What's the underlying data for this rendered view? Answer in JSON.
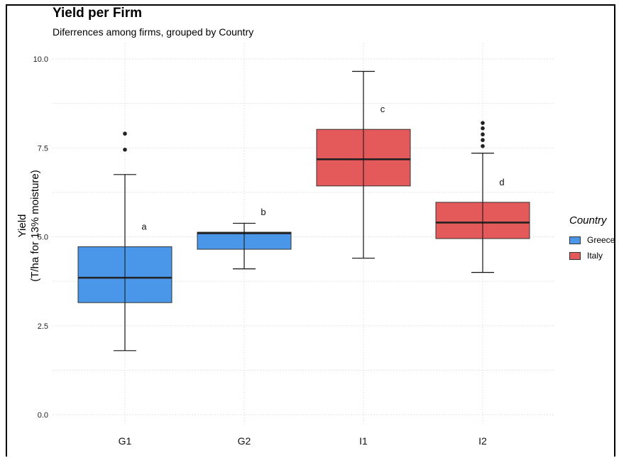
{
  "chart_data": {
    "type": "box",
    "title": "Yield per Firm",
    "subtitle": "Diferrences among firms, grouped by Country",
    "ylabel_line1": "Yield",
    "ylabel_line2": "(T/ha for 13% moisture)",
    "xlabel": "",
    "ylim": [
      0,
      10
    ],
    "y_ticks": [
      "0.0",
      "2.5",
      "5.0",
      "7.5",
      "10.0"
    ],
    "grid": true,
    "legend_title": "Country",
    "legend_position": "right",
    "legend": [
      {
        "name": "Greece",
        "color": "#4a96e8"
      },
      {
        "name": "Italy",
        "color": "#e45a5a"
      }
    ],
    "boxes": [
      {
        "category": "G1",
        "country": "Greece",
        "min": 1.8,
        "q1": 3.15,
        "median": 3.85,
        "q3": 4.72,
        "max": 6.75,
        "outliers": [
          7.45,
          7.9
        ],
        "letter": "a"
      },
      {
        "category": "G2",
        "country": "Greece",
        "min": 4.1,
        "q1": 4.65,
        "median": 5.1,
        "q3": 5.13,
        "max": 5.38,
        "outliers": [],
        "letter": "b"
      },
      {
        "category": "I1",
        "country": "Italy",
        "min": 4.4,
        "q1": 6.43,
        "median": 7.18,
        "q3": 8.02,
        "max": 9.65,
        "outliers": [],
        "letter": "c"
      },
      {
        "category": "I2",
        "country": "Italy",
        "min": 4.0,
        "q1": 4.95,
        "median": 5.4,
        "q3": 5.97,
        "max": 7.35,
        "outliers": [
          7.55,
          7.72,
          7.88,
          8.05,
          8.2
        ],
        "letter": "d"
      }
    ]
  }
}
